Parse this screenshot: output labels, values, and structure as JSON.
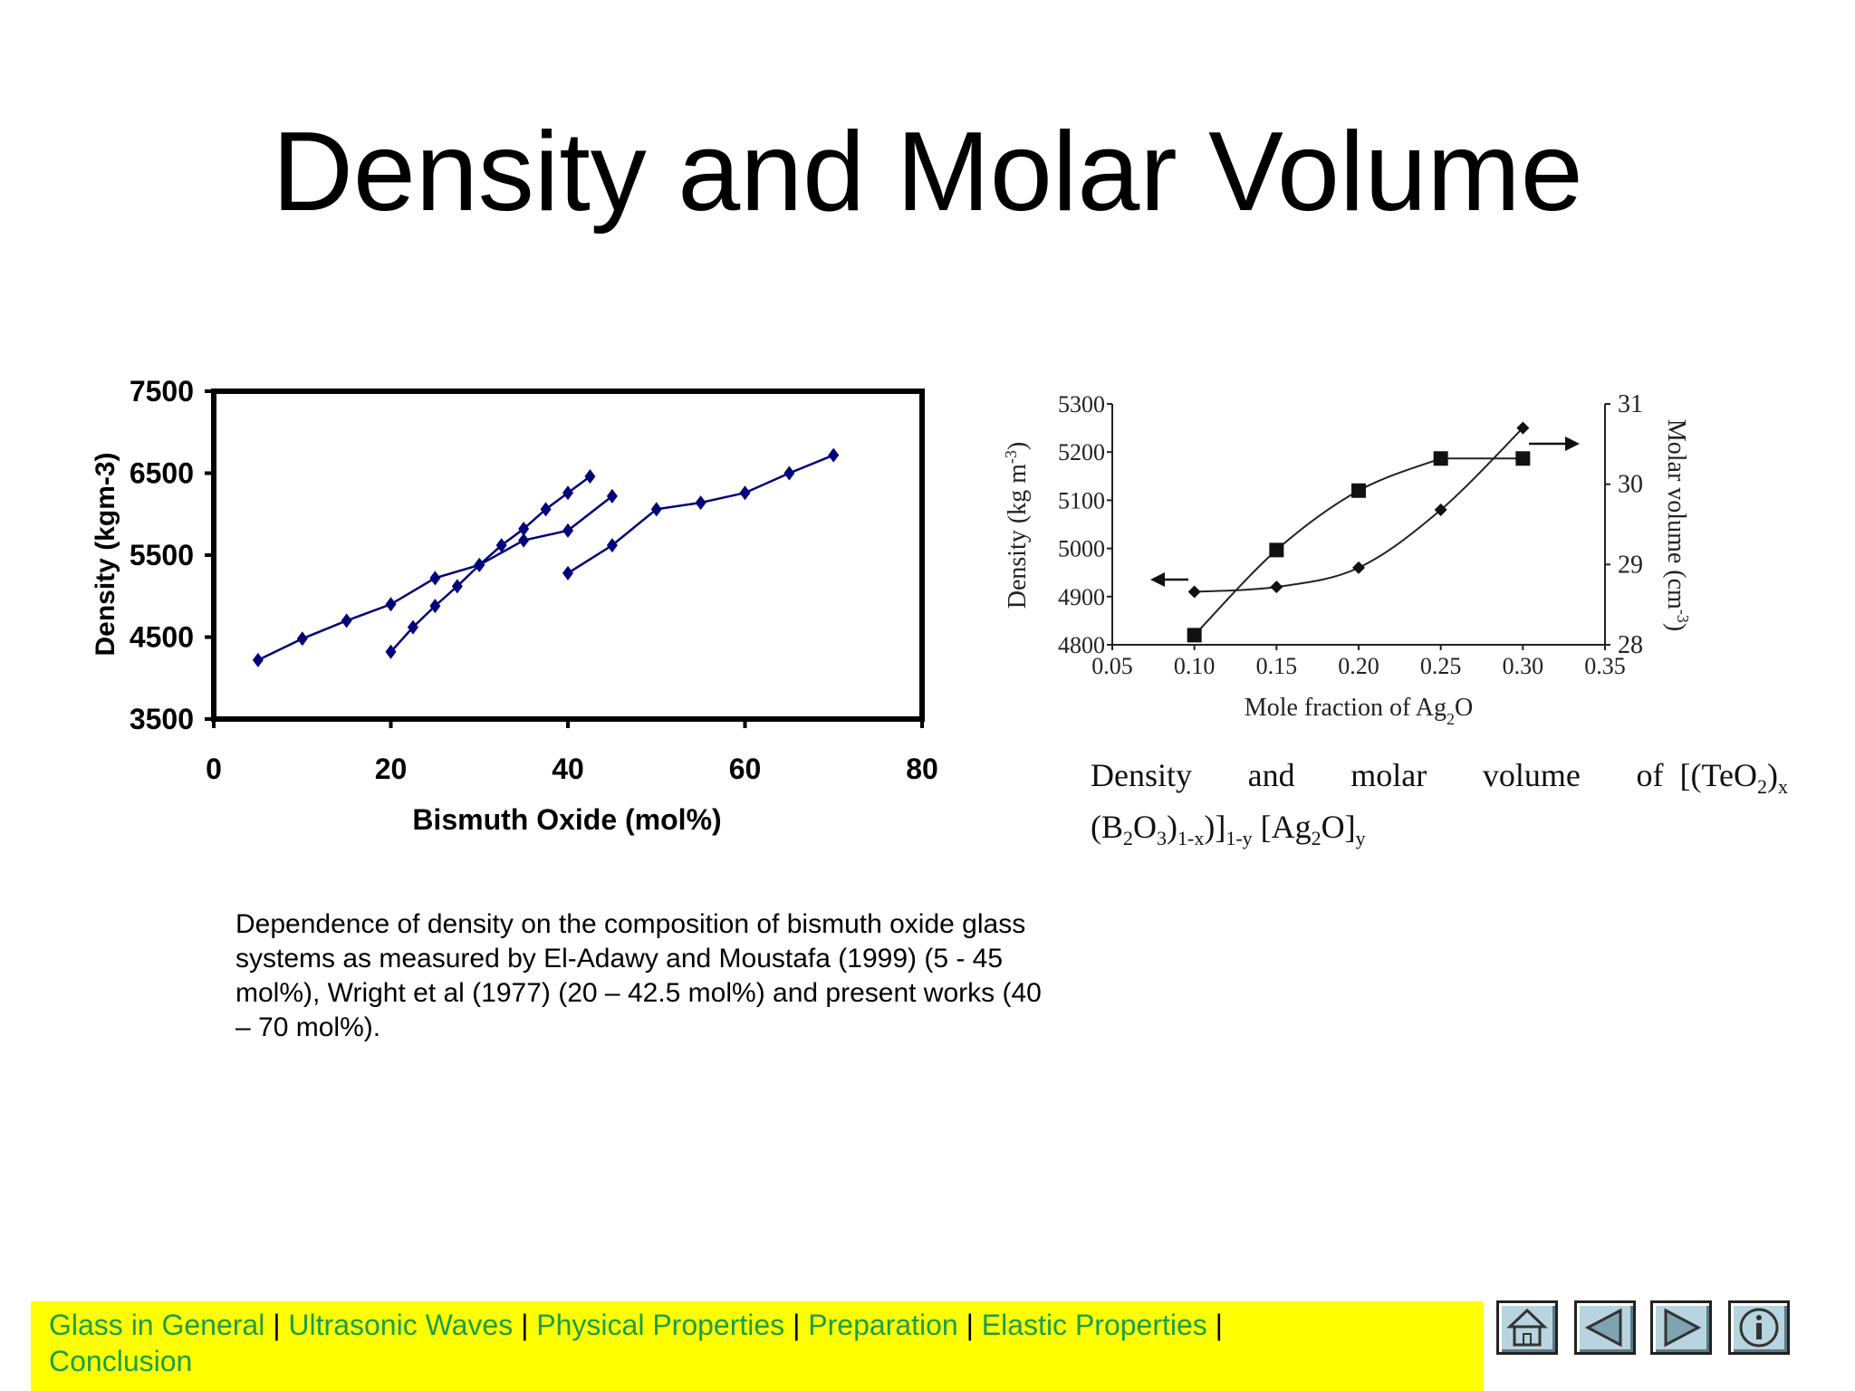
{
  "slide": {
    "title": "Density and Molar Volume"
  },
  "chart_data": [
    {
      "type": "line",
      "xlabel": "Bismuth Oxide (mol%)",
      "ylabel": "Density (kgm-3)",
      "xlim": [
        0,
        80
      ],
      "ylim": [
        3500,
        7500
      ],
      "x_ticks": [
        "0",
        "20",
        "40",
        "60",
        "80"
      ],
      "y_ticks": [
        "7500",
        "6500",
        "5500",
        "4500",
        "3500"
      ],
      "grid": false,
      "legend": "none",
      "series": [
        {
          "x": [
            5,
            10,
            15,
            20,
            25,
            30,
            35,
            40,
            45
          ],
          "y": [
            4220,
            4480,
            4700,
            4900,
            5220,
            5380,
            5680,
            5800,
            6220
          ]
        },
        {
          "x": [
            20,
            22.5,
            25,
            27.5,
            30,
            32.5,
            35,
            37.5,
            40,
            42.5
          ],
          "y": [
            4320,
            4620,
            4880,
            5120,
            5380,
            5620,
            5820,
            6060,
            6260,
            6460
          ]
        },
        {
          "x": [
            40,
            45,
            50,
            55,
            60,
            65,
            70
          ],
          "y": [
            5280,
            5620,
            6060,
            6140,
            6260,
            6500,
            6720
          ]
        }
      ]
    },
    {
      "type": "line",
      "xlabel": "Mole fraction of Ag2O",
      "ylabel": "Density (kg m-3)",
      "ylabel_right": "Molar volume (cm-3)",
      "xlim": [
        0.05,
        0.35
      ],
      "ylim": [
        4800,
        5300
      ],
      "ylim_right": [
        28,
        31
      ],
      "x_ticks": [
        "0.05",
        "0.10",
        "0.15",
        "0.20",
        "0.25",
        "0.30",
        "0.35"
      ],
      "y_ticks": [
        "5300",
        "5200",
        "5100",
        "5000",
        "4900",
        "4800"
      ],
      "y_ticks_right": [
        "31",
        "30",
        "29",
        "28"
      ],
      "grid": false,
      "series": [
        {
          "marker": "diamond",
          "axis": "left",
          "x": [
            0.1,
            0.15,
            0.2,
            0.25,
            0.3
          ],
          "y": [
            4910,
            4920,
            4960,
            5080,
            5250
          ]
        },
        {
          "marker": "square",
          "axis": "right",
          "x": [
            0.1,
            0.15,
            0.2,
            0.25,
            0.3
          ],
          "y": [
            28.12,
            29.18,
            29.92,
            30.32,
            30.32
          ]
        }
      ]
    }
  ],
  "captions": {
    "left": "Dependence of density on the composition of bismuth oxide glass systems as measured by El-Adawy and Moustafa (1999) (5 - 45 mol%), Wright et al (1977) (20 – 42.5 mol%)  and present works (40 – 70 mol%).",
    "right": {
      "w1": "Density",
      "w2": "and",
      "w3": "molar",
      "w4": "volume",
      "w5": "of",
      "formula_start": "[(TeO",
      "sub_2a": "2",
      "close_x": ")",
      "sub_x": "x",
      "b2o3_open": "(B",
      "sub_2b": "2",
      "o": "O",
      "sub_3": "3",
      "close": ")",
      "sub_1x": "1-x",
      "bracket": ")]",
      "sub_1y": "1-y",
      "ag_open": " [Ag",
      "sub_2c": "2",
      "o_close": "O]",
      "sub_y": "y"
    }
  },
  "nav": {
    "links": [
      "Glass in General",
      "Ultrasonic Waves",
      "Physical Properties",
      "Preparation",
      "Elastic Properties",
      "Conclusion"
    ],
    "separator": "|"
  },
  "colors": {
    "series_left": "#00007a",
    "nav_bg": "#ffff00",
    "nav_link": "#1a9e4a",
    "button_fill": "#b8d4de"
  },
  "icons": [
    "home-icon",
    "previous-arrow-icon",
    "next-arrow-icon",
    "info-icon"
  ]
}
